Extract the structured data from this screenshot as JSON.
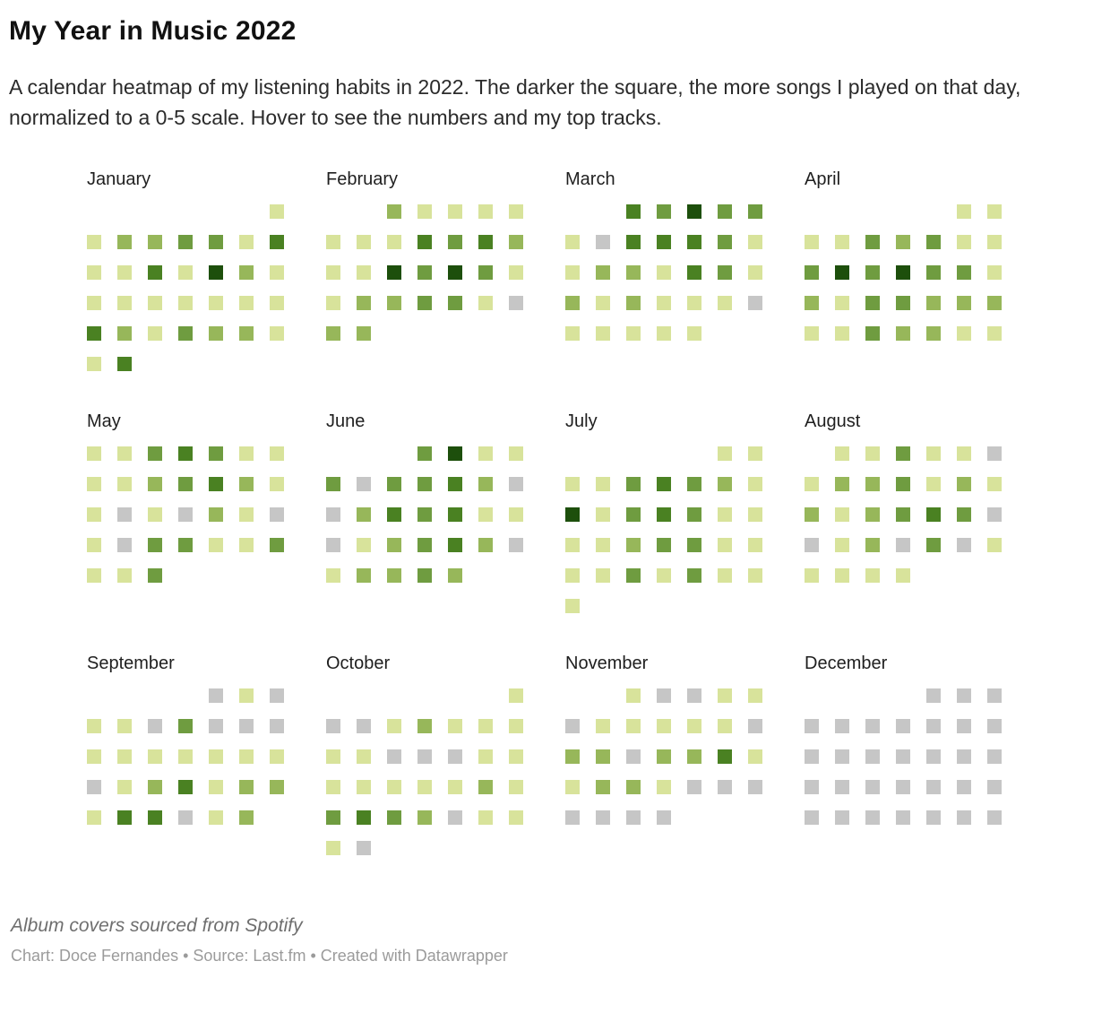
{
  "header": {
    "title": "My Year in Music 2022",
    "description": "A calendar heatmap of my listening habits in 2022. The darker the square, the more songs I played on that day, normalized to a 0-5 scale. Hover to see the numbers and my top tracks."
  },
  "footer": {
    "note": "Album covers sourced from Spotify",
    "byline": "Chart: Doce Fernandes • Source: Last.fm • Created with Datawrapper"
  },
  "chart_data": {
    "type": "heatmap",
    "title": "My Year in Music 2022",
    "subtitle": "A calendar heatmap of my listening habits in 2022. The darker the square, the more songs I played on that day, normalized to a 0-5 scale. Hover to see the numbers and my top tracks.",
    "value_scale": [
      0,
      5
    ],
    "week_starts": "Sunday",
    "grid_columns_per_month": 7,
    "palette": [
      "#c6c6c6",
      "#d8e39b",
      "#97b75a",
      "#6f9c40",
      "#4a8122",
      "#1d4f0c"
    ],
    "palette_meaning": [
      "0 - gray",
      "1 - palest green",
      "2 - light green",
      "3 - medium green",
      "4 - dark green",
      "5 - darkest green"
    ],
    "months": [
      {
        "name": "January",
        "first_day_column": 7,
        "levels": [
          1,
          1,
          2,
          2,
          3,
          3,
          1,
          4,
          1,
          1,
          4,
          1,
          5,
          2,
          1,
          1,
          1,
          1,
          1,
          1,
          1,
          1,
          4,
          2,
          1,
          3,
          2,
          2,
          1,
          1,
          4
        ]
      },
      {
        "name": "February",
        "first_day_column": 3,
        "levels": [
          2,
          1,
          1,
          1,
          1,
          1,
          1,
          1,
          4,
          3,
          4,
          2,
          1,
          1,
          5,
          3,
          5,
          3,
          1,
          1,
          2,
          2,
          3,
          3,
          1,
          0,
          2,
          2
        ]
      },
      {
        "name": "March",
        "first_day_column": 3,
        "levels": [
          4,
          3,
          5,
          3,
          3,
          1,
          0,
          4,
          4,
          4,
          3,
          1,
          1,
          2,
          2,
          1,
          4,
          3,
          1,
          2,
          1,
          2,
          1,
          1,
          1,
          0,
          1,
          1,
          1,
          1,
          1
        ]
      },
      {
        "name": "April",
        "first_day_column": 6,
        "levels": [
          1,
          1,
          1,
          1,
          3,
          2,
          3,
          1,
          1,
          3,
          5,
          3,
          5,
          3,
          3,
          1,
          2,
          1,
          3,
          3,
          2,
          2,
          2,
          1,
          1,
          3,
          2,
          2,
          1,
          1
        ]
      },
      {
        "name": "May",
        "first_day_column": 1,
        "levels": [
          1,
          1,
          3,
          4,
          3,
          1,
          1,
          1,
          1,
          2,
          3,
          4,
          2,
          1,
          1,
          0,
          1,
          0,
          2,
          1,
          0,
          1,
          0,
          3,
          3,
          1,
          1,
          3,
          1,
          1,
          3
        ]
      },
      {
        "name": "June",
        "first_day_column": 4,
        "levels": [
          3,
          5,
          1,
          1,
          3,
          0,
          3,
          3,
          4,
          2,
          0,
          0,
          2,
          4,
          3,
          4,
          1,
          1,
          0,
          1,
          2,
          3,
          4,
          2,
          0,
          1,
          2,
          2,
          3,
          2
        ]
      },
      {
        "name": "July",
        "first_day_column": 6,
        "levels": [
          1,
          1,
          1,
          1,
          3,
          4,
          3,
          2,
          1,
          5,
          1,
          3,
          4,
          3,
          1,
          1,
          1,
          1,
          2,
          3,
          3,
          1,
          1,
          1,
          1,
          3,
          1,
          3,
          1,
          1,
          1
        ]
      },
      {
        "name": "August",
        "first_day_column": 2,
        "levels": [
          1,
          1,
          3,
          1,
          1,
          0,
          1,
          2,
          2,
          3,
          1,
          2,
          1,
          2,
          1,
          2,
          3,
          4,
          3,
          0,
          0,
          1,
          2,
          0,
          3,
          0,
          1,
          1,
          1,
          1,
          1
        ]
      },
      {
        "name": "September",
        "first_day_column": 5,
        "levels": [
          0,
          1,
          0,
          1,
          1,
          0,
          3,
          0,
          0,
          0,
          1,
          1,
          1,
          1,
          1,
          1,
          1,
          0,
          1,
          2,
          4,
          1,
          2,
          2,
          1,
          4,
          4,
          0,
          1,
          2
        ]
      },
      {
        "name": "October",
        "first_day_column": 7,
        "levels": [
          1,
          0,
          0,
          1,
          2,
          1,
          1,
          1,
          1,
          1,
          0,
          0,
          0,
          1,
          1,
          1,
          1,
          1,
          1,
          1,
          2,
          1,
          3,
          4,
          3,
          2,
          0,
          1,
          1,
          1,
          0
        ]
      },
      {
        "name": "November",
        "first_day_column": 3,
        "levels": [
          1,
          0,
          0,
          1,
          1,
          0,
          1,
          1,
          1,
          1,
          1,
          0,
          2,
          2,
          0,
          2,
          2,
          4,
          1,
          1,
          2,
          2,
          1,
          0,
          0,
          0,
          0,
          0,
          0,
          0
        ]
      },
      {
        "name": "December",
        "first_day_column": 5,
        "levels": [
          0,
          0,
          0,
          0,
          0,
          0,
          0,
          0,
          0,
          0,
          0,
          0,
          0,
          0,
          0,
          0,
          0,
          0,
          0,
          0,
          0,
          0,
          0,
          0,
          0,
          0,
          0,
          0,
          0,
          0,
          0
        ]
      }
    ]
  }
}
